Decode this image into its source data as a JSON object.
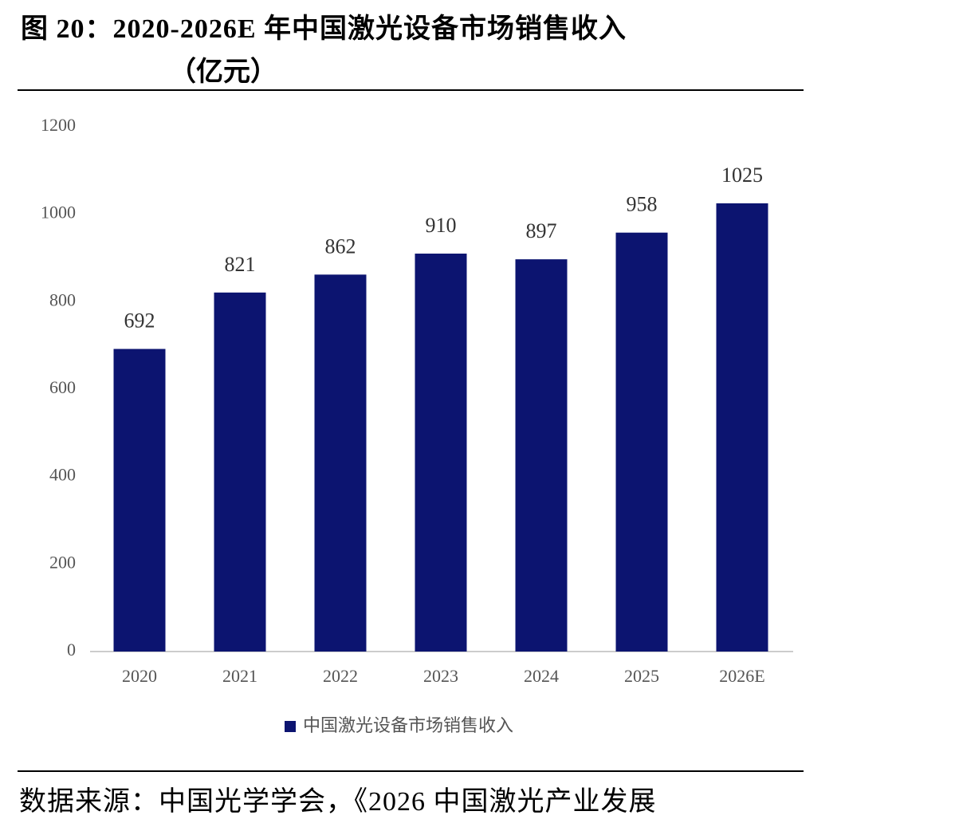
{
  "chart_data": {
    "type": "bar",
    "title": "图 20：2020-2026E 年中国激光设备市场销售收入",
    "unit": "（亿元）",
    "categories": [
      "2020",
      "2021",
      "2022",
      "2023",
      "2024",
      "2025",
      "2026E"
    ],
    "series": [
      {
        "name": "中国激光设备市场销售收入",
        "color": "#0c1470",
        "values": [
          692,
          821,
          862,
          910,
          897,
          958,
          1025
        ]
      }
    ],
    "ylim": [
      0,
      1200
    ],
    "yticks": [
      0,
      200,
      400,
      600,
      800,
      1000,
      1200
    ],
    "grid": false,
    "legend": "bottom",
    "source": "数据来源：中国光学学会，《2026 中国激光产业发展"
  }
}
